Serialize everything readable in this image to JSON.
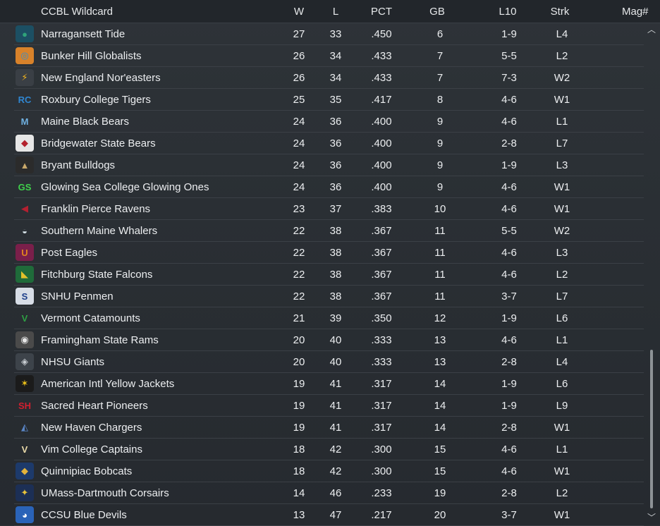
{
  "header": {
    "title": "CCBL  Wildcard",
    "cols": {
      "w": "W",
      "l": "L",
      "pct": "PCT",
      "gb": "GB",
      "l10": "L10",
      "strk": "Strk",
      "mag": "Mag#"
    }
  },
  "teams": [
    {
      "name": "Narragansett Tide",
      "w": "27",
      "l": "33",
      "pct": ".450",
      "gb": "6",
      "l10": "1-9",
      "strk": "L4",
      "logo": {
        "icon": "tide-logo",
        "glyph": "●",
        "color": "#2fa37a",
        "bg": "#1c4f63"
      }
    },
    {
      "name": "Bunker Hill Globalists",
      "w": "26",
      "l": "34",
      "pct": ".433",
      "gb": "7",
      "l10": "5-5",
      "strk": "L2",
      "logo": {
        "icon": "globe-logo",
        "glyph": "◎",
        "color": "#2a8fd6",
        "bg": "#d8822a"
      }
    },
    {
      "name": "New England Nor'easters",
      "w": "26",
      "l": "34",
      "pct": ".433",
      "gb": "7",
      "l10": "7-3",
      "strk": "W2",
      "logo": {
        "icon": "lightning-logo",
        "glyph": "⚡",
        "color": "#f2b51e",
        "bg": "#3a3f45"
      }
    },
    {
      "name": "Roxbury College Tigers",
      "w": "25",
      "l": "35",
      "pct": ".417",
      "gb": "8",
      "l10": "4-6",
      "strk": "W1",
      "logo": {
        "icon": "rc-logo",
        "glyph": "RC",
        "color": "#2f86d1",
        "bg": "transparent"
      }
    },
    {
      "name": "Maine Black Bears",
      "w": "24",
      "l": "36",
      "pct": ".400",
      "gb": "9",
      "l10": "4-6",
      "strk": "L1",
      "logo": {
        "icon": "m-logo",
        "glyph": "M",
        "color": "#6fb0e0",
        "bg": "transparent"
      }
    },
    {
      "name": "Bridgewater State Bears",
      "w": "24",
      "l": "36",
      "pct": ".400",
      "gb": "9",
      "l10": "2-8",
      "strk": "L7",
      "logo": {
        "icon": "bear-logo",
        "glyph": "◆",
        "color": "#b3212d",
        "bg": "#e6e6e6"
      }
    },
    {
      "name": "Bryant Bulldogs",
      "w": "24",
      "l": "36",
      "pct": ".400",
      "gb": "9",
      "l10": "1-9",
      "strk": "L3",
      "logo": {
        "icon": "bulldog-logo",
        "glyph": "▲",
        "color": "#c9a86a",
        "bg": "#2b2b2b"
      }
    },
    {
      "name": "Glowing Sea College Glowing Ones",
      "w": "24",
      "l": "36",
      "pct": ".400",
      "gb": "9",
      "l10": "4-6",
      "strk": "W1",
      "logo": {
        "icon": "gs-logo",
        "glyph": "GS",
        "color": "#3fd14b",
        "bg": "transparent"
      }
    },
    {
      "name": "Franklin Pierce Ravens",
      "w": "23",
      "l": "37",
      "pct": ".383",
      "gb": "10",
      "l10": "4-6",
      "strk": "W1",
      "logo": {
        "icon": "raven-logo",
        "glyph": "◀",
        "color": "#b32030",
        "bg": "transparent"
      }
    },
    {
      "name": "Southern Maine Whalers",
      "w": "22",
      "l": "38",
      "pct": ".367",
      "gb": "11",
      "l10": "5-5",
      "strk": "W2",
      "logo": {
        "icon": "whale-logo",
        "glyph": "◒",
        "color": "#d8e4ea",
        "bg": "transparent"
      }
    },
    {
      "name": "Post Eagles",
      "w": "22",
      "l": "38",
      "pct": ".367",
      "gb": "11",
      "l10": "4-6",
      "strk": "L3",
      "logo": {
        "icon": "post-logo",
        "glyph": "U",
        "color": "#e0851f",
        "bg": "#7a1f4a"
      }
    },
    {
      "name": "Fitchburg State Falcons",
      "w": "22",
      "l": "38",
      "pct": ".367",
      "gb": "11",
      "l10": "4-6",
      "strk": "L2",
      "logo": {
        "icon": "falcon-logo",
        "glyph": "◣",
        "color": "#e2c22a",
        "bg": "#1f6b3a"
      }
    },
    {
      "name": "SNHU Penmen",
      "w": "22",
      "l": "38",
      "pct": ".367",
      "gb": "11",
      "l10": "3-7",
      "strk": "L7",
      "logo": {
        "icon": "snhu-logo",
        "glyph": "S",
        "color": "#1d3f8a",
        "bg": "#d7dde6"
      }
    },
    {
      "name": "Vermont Catamounts",
      "w": "21",
      "l": "39",
      "pct": ".350",
      "gb": "12",
      "l10": "1-9",
      "strk": "L6",
      "logo": {
        "icon": "v-logo",
        "glyph": "V",
        "color": "#2e9e43",
        "bg": "transparent"
      }
    },
    {
      "name": "Framingham State Rams",
      "w": "20",
      "l": "40",
      "pct": ".333",
      "gb": "13",
      "l10": "4-6",
      "strk": "L1",
      "logo": {
        "icon": "ram-logo",
        "glyph": "◉",
        "color": "#e6e6e6",
        "bg": "#4a4a4a"
      }
    },
    {
      "name": "NHSU Giants",
      "w": "20",
      "l": "40",
      "pct": ".333",
      "gb": "13",
      "l10": "2-8",
      "strk": "L4",
      "logo": {
        "icon": "giant-logo",
        "glyph": "◈",
        "color": "#c8cdd2",
        "bg": "#3d434a"
      }
    },
    {
      "name": "American Intl Yellow Jackets",
      "w": "19",
      "l": "41",
      "pct": ".317",
      "gb": "14",
      "l10": "1-9",
      "strk": "L6",
      "logo": {
        "icon": "jacket-logo",
        "glyph": "✶",
        "color": "#f0c419",
        "bg": "#1b1b1b"
      }
    },
    {
      "name": "Sacred Heart Pioneers",
      "w": "19",
      "l": "41",
      "pct": ".317",
      "gb": "14",
      "l10": "1-9",
      "strk": "L9",
      "logo": {
        "icon": "sh-logo",
        "glyph": "SH",
        "color": "#d11f2f",
        "bg": "transparent"
      }
    },
    {
      "name": "New Haven Chargers",
      "w": "19",
      "l": "41",
      "pct": ".317",
      "gb": "14",
      "l10": "2-8",
      "strk": "W1",
      "logo": {
        "icon": "charger-logo",
        "glyph": "◭",
        "color": "#5a86c6",
        "bg": "transparent"
      }
    },
    {
      "name": "Vim College Captains",
      "w": "18",
      "l": "42",
      "pct": ".300",
      "gb": "15",
      "l10": "4-6",
      "strk": "L1",
      "logo": {
        "icon": "vim-logo",
        "glyph": "V",
        "color": "#e9d9a8",
        "bg": "transparent"
      }
    },
    {
      "name": "Quinnipiac Bobcats",
      "w": "18",
      "l": "42",
      "pct": ".300",
      "gb": "15",
      "l10": "4-6",
      "strk": "W1",
      "logo": {
        "icon": "bobcat-logo",
        "glyph": "◆",
        "color": "#e3b33a",
        "bg": "#1d3a6b"
      }
    },
    {
      "name": "UMass-Dartmouth Corsairs",
      "w": "14",
      "l": "46",
      "pct": ".233",
      "gb": "19",
      "l10": "2-8",
      "strk": "L2",
      "logo": {
        "icon": "corsair-logo",
        "glyph": "✦",
        "color": "#e6c23a",
        "bg": "#1c2f55"
      }
    },
    {
      "name": "CCSU Blue Devils",
      "w": "13",
      "l": "47",
      "pct": ".217",
      "gb": "20",
      "l10": "3-7",
      "strk": "W1",
      "logo": {
        "icon": "devil-logo",
        "glyph": "◕",
        "color": "#ffffff",
        "bg": "#2a63b8"
      }
    }
  ]
}
